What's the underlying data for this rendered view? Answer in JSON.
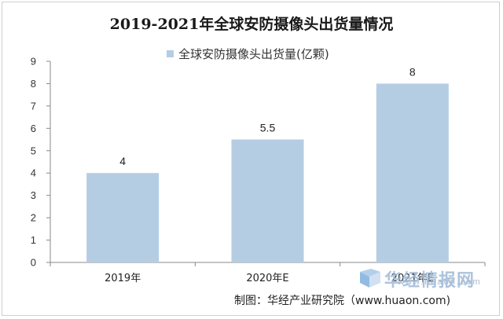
{
  "chart_data": {
    "type": "bar",
    "title": "2019-2021年全球安防摄像头出货量情况",
    "categories": [
      "2019年",
      "2020年E",
      "2021年E"
    ],
    "series": [
      {
        "name": "全球安防摄像头出货量(亿颗)",
        "values": [
          4,
          5.5,
          8
        ]
      }
    ],
    "data_labels": [
      "4",
      "5.5",
      "8"
    ],
    "ylim": [
      0,
      9
    ],
    "yticks": [
      0,
      1,
      2,
      3,
      4,
      5,
      6,
      7,
      8,
      9
    ],
    "grid": false,
    "legend_position": "top-center",
    "bar_color": "#b4cde3"
  },
  "source": "制图：华经产业研究院（www.huaon.com)",
  "watermark": {
    "text": "华经情报网",
    "url": "www.huaon.com",
    "color": "#9fb9d6"
  }
}
